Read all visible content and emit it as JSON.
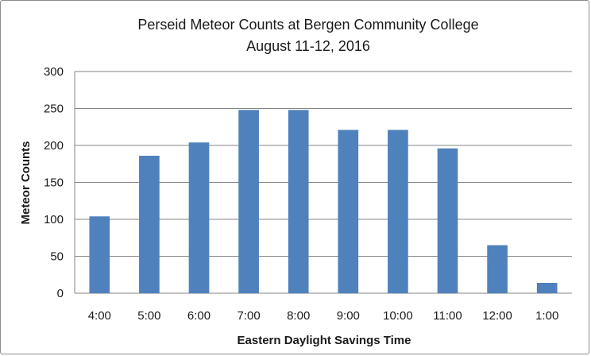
{
  "chart_data": {
    "type": "bar",
    "title": "Perseid  Meteor Counts at Bergen Community College",
    "subtitle": "August 11-12, 2016",
    "xlabel": "Eastern Daylight  Savings  Time",
    "ylabel": "Meteor Counts",
    "categories": [
      "4:00",
      "5:00",
      "6:00",
      "7:00",
      "8:00",
      "9:00",
      "10:00",
      "11:00",
      "12:00",
      "1:00"
    ],
    "values": [
      104,
      186,
      204,
      248,
      248,
      221,
      221,
      196,
      65,
      14
    ],
    "ylim": [
      0,
      300
    ],
    "yticks": [
      0,
      50,
      100,
      150,
      200,
      250,
      300
    ],
    "grid": true,
    "legend": "none",
    "bar_color": "#4f81bd",
    "grid_color": "#868686"
  }
}
